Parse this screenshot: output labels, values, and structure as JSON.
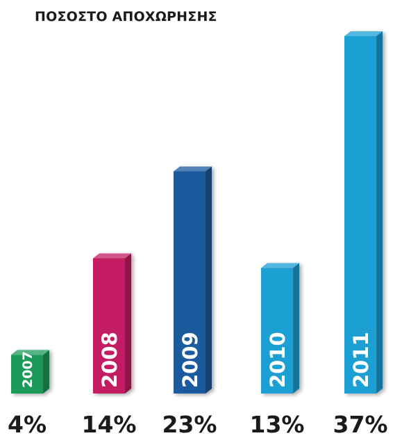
{
  "title": "ΠΟΣΟΣΤΟ ΑΠΟΧΩΡΗΣΗΣ",
  "chart_data": {
    "type": "bar",
    "title": "ΠΟΣΟΣΤΟ ΑΠΟΧΩΡΗΣΗΣ",
    "categories": [
      "2007",
      "2008",
      "2009",
      "2010",
      "2011"
    ],
    "values": [
      4,
      14,
      23,
      13,
      37
    ],
    "value_labels": [
      "4%",
      "14%",
      "23%",
      "13%",
      "37%"
    ],
    "ylim": [
      0,
      37
    ],
    "grid": false,
    "legend": "none",
    "colors": [
      "#1f9a5a",
      "#c41d62",
      "#1a5a9e",
      "#1aa0d4",
      "#1aa0d4"
    ]
  }
}
